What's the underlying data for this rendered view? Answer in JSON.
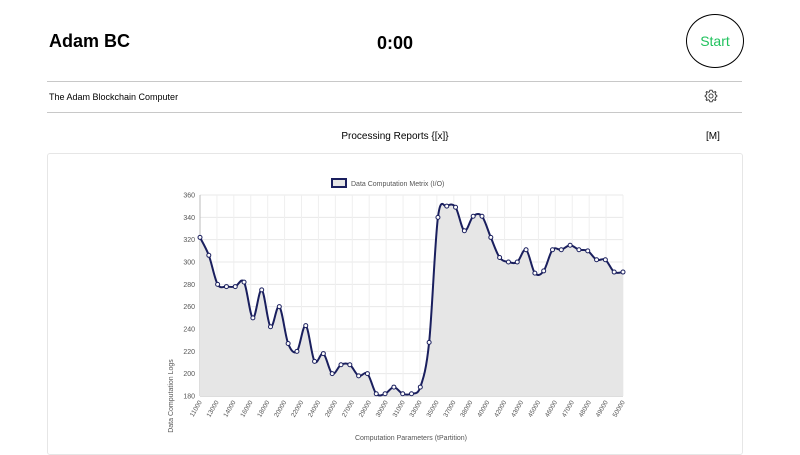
{
  "header": {
    "app_title": "Adam BC",
    "timer": "0:00",
    "start_label": "Start"
  },
  "subheader": {
    "title": "The Adam Blockchain Computer",
    "settings_icon": "gear-icon"
  },
  "reports": {
    "label": "Processing Reports {[x]}",
    "m_label": "[M]"
  },
  "colors": {
    "start_text": "#21c25e",
    "series_line": "#1a1f5e",
    "series_fill": "#e6e6e6"
  },
  "chart_data": {
    "type": "line",
    "legend": "Data Computation Metrix (I/O)",
    "xlabel": "Computation Parameters (tPartition)",
    "ylabel": "Data Computation Logs",
    "ylim": [
      180,
      360
    ],
    "yticks": [
      180,
      200,
      220,
      240,
      260,
      280,
      300,
      320,
      340,
      360
    ],
    "x_tick_labels": [
      "11000",
      "13000",
      "14000",
      "16000",
      "18000",
      "20000",
      "22000",
      "24000",
      "26000",
      "27000",
      "29000",
      "30000",
      "31000",
      "33000",
      "35000",
      "37000",
      "38000",
      "40000",
      "42000",
      "43000",
      "45000",
      "46000",
      "47000",
      "48000",
      "49000",
      "50000"
    ],
    "series": [
      {
        "values": [
          322,
          306,
          280,
          278,
          278,
          282,
          250,
          275,
          242,
          260,
          227,
          220,
          243,
          211,
          218,
          200,
          208,
          208,
          198,
          200,
          182,
          182,
          188,
          182,
          182,
          188,
          228,
          340,
          350,
          349,
          328,
          341,
          341,
          322,
          304,
          300,
          300,
          311,
          290,
          292,
          311,
          311,
          315,
          311,
          310,
          302,
          302,
          291,
          291
        ]
      }
    ],
    "grid": true
  }
}
